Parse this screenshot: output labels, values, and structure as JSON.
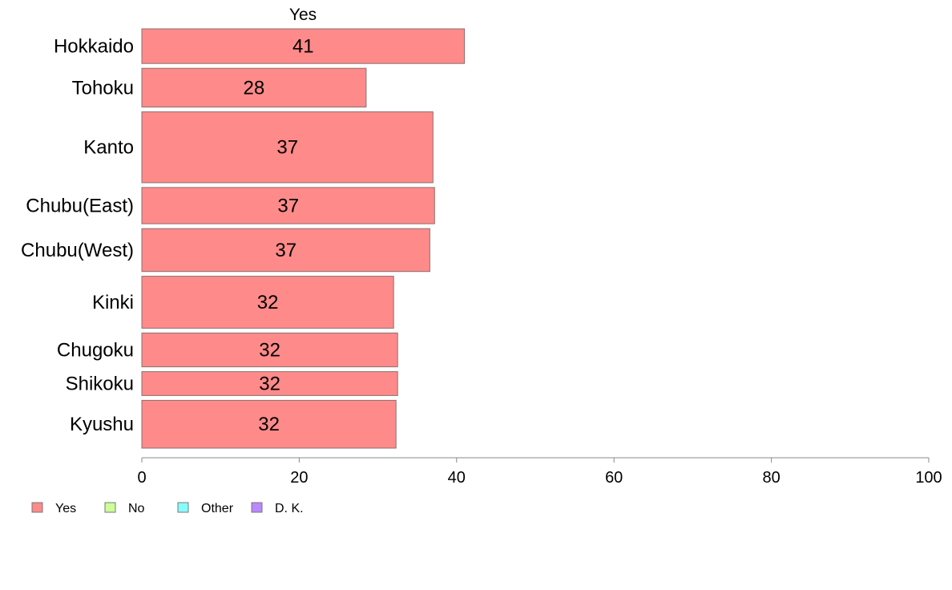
{
  "chart_data": {
    "type": "bar",
    "orientation": "horizontal",
    "categories": [
      "Hokkaido",
      "Tohoku",
      "Kanto",
      "Chubu(East)",
      "Chubu(West)",
      "Kinki",
      "Chugoku",
      "Shikoku",
      "Kyushu"
    ],
    "relative_bar_thickness": [
      42,
      47,
      86,
      44,
      52,
      63,
      41,
      29,
      58
    ],
    "series": [
      {
        "name": "Yes",
        "values": [
          41,
          28.5,
          37,
          37.2,
          36.6,
          32,
          32.5,
          32.5,
          32.3
        ]
      }
    ],
    "data_labels": [
      "41",
      "28",
      "37",
      "37",
      "37",
      "32",
      "32",
      "32",
      "32"
    ],
    "series_heading": "Yes",
    "xlim": [
      0,
      100
    ],
    "xticks": [
      0,
      20,
      40,
      60,
      80,
      100
    ],
    "legend": {
      "placement": "bottom-left",
      "items": [
        {
          "label": "Yes",
          "color": "#ff8a8a"
        },
        {
          "label": "No",
          "color": "#ccff99"
        },
        {
          "label": "Other",
          "color": "#88ffff"
        },
        {
          "label": "D. K.",
          "color": "#bb88ff"
        }
      ]
    },
    "bar_color": "#ff8a8a",
    "bar_border_color": "#8a6f6f",
    "grid": false
  }
}
